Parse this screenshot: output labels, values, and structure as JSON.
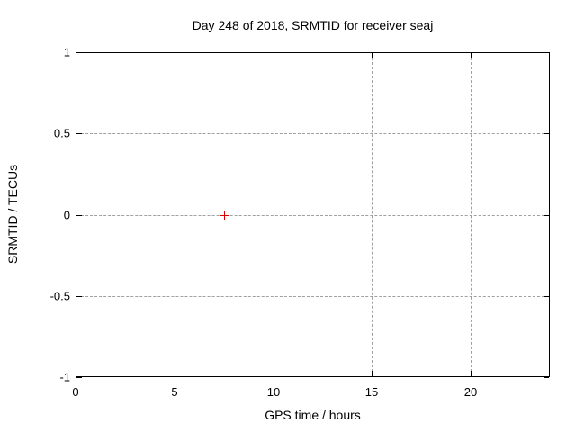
{
  "window": {
    "background": "#ffffff"
  },
  "chart_data": {
    "type": "scatter",
    "title": "Day 248 of 2018, SRMTID for receiver seaj",
    "xlabel": "GPS time / hours",
    "ylabel": "SRMTID / TECUs",
    "xlim": [
      0,
      24
    ],
    "ylim": [
      -1,
      1
    ],
    "xticks": [
      0,
      5,
      10,
      15,
      20
    ],
    "yticks": [
      -1,
      -0.5,
      0,
      0.5,
      1
    ],
    "grid": true,
    "legend": "none",
    "series": [
      {
        "name": "SRMTID",
        "marker": "plus",
        "color": "#dd0000",
        "points": [
          {
            "x": 7.5,
            "y": 0
          }
        ]
      }
    ],
    "colors": {
      "grid": "#a0a0a0",
      "axis": "#000000",
      "text": "#000000"
    }
  }
}
